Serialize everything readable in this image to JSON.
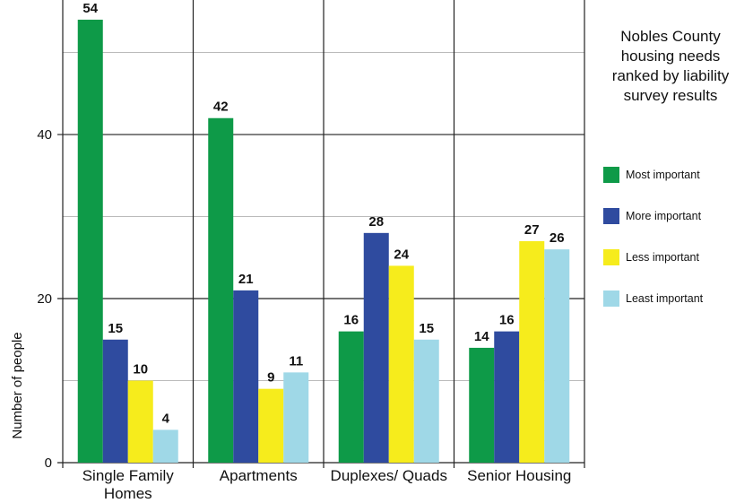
{
  "chart_data": {
    "type": "bar",
    "title": "Nobles County housing needs ranked by liability survey results",
    "ylabel": "Number of people",
    "categories": [
      "Single Family Homes",
      "Apartments",
      "Duplexes/ Quads",
      "Senior Housing"
    ],
    "series": [
      {
        "name": "Most important",
        "color": "#0e9a48",
        "values": [
          54,
          42,
          16,
          14
        ]
      },
      {
        "name": "More important",
        "color": "#2f4b9f",
        "values": [
          15,
          21,
          28,
          16
        ]
      },
      {
        "name": "Less important",
        "color": "#f6ec1c",
        "values": [
          10,
          9,
          24,
          27
        ]
      },
      {
        "name": "Least important",
        "color": "#9fd8e7",
        "values": [
          4,
          11,
          15,
          26
        ]
      }
    ],
    "ylim": [
      0,
      56.4
    ],
    "yticks": [
      0,
      20,
      40
    ],
    "minor_yticks": [
      10,
      30,
      50
    ],
    "grid": true,
    "legend": "right"
  }
}
